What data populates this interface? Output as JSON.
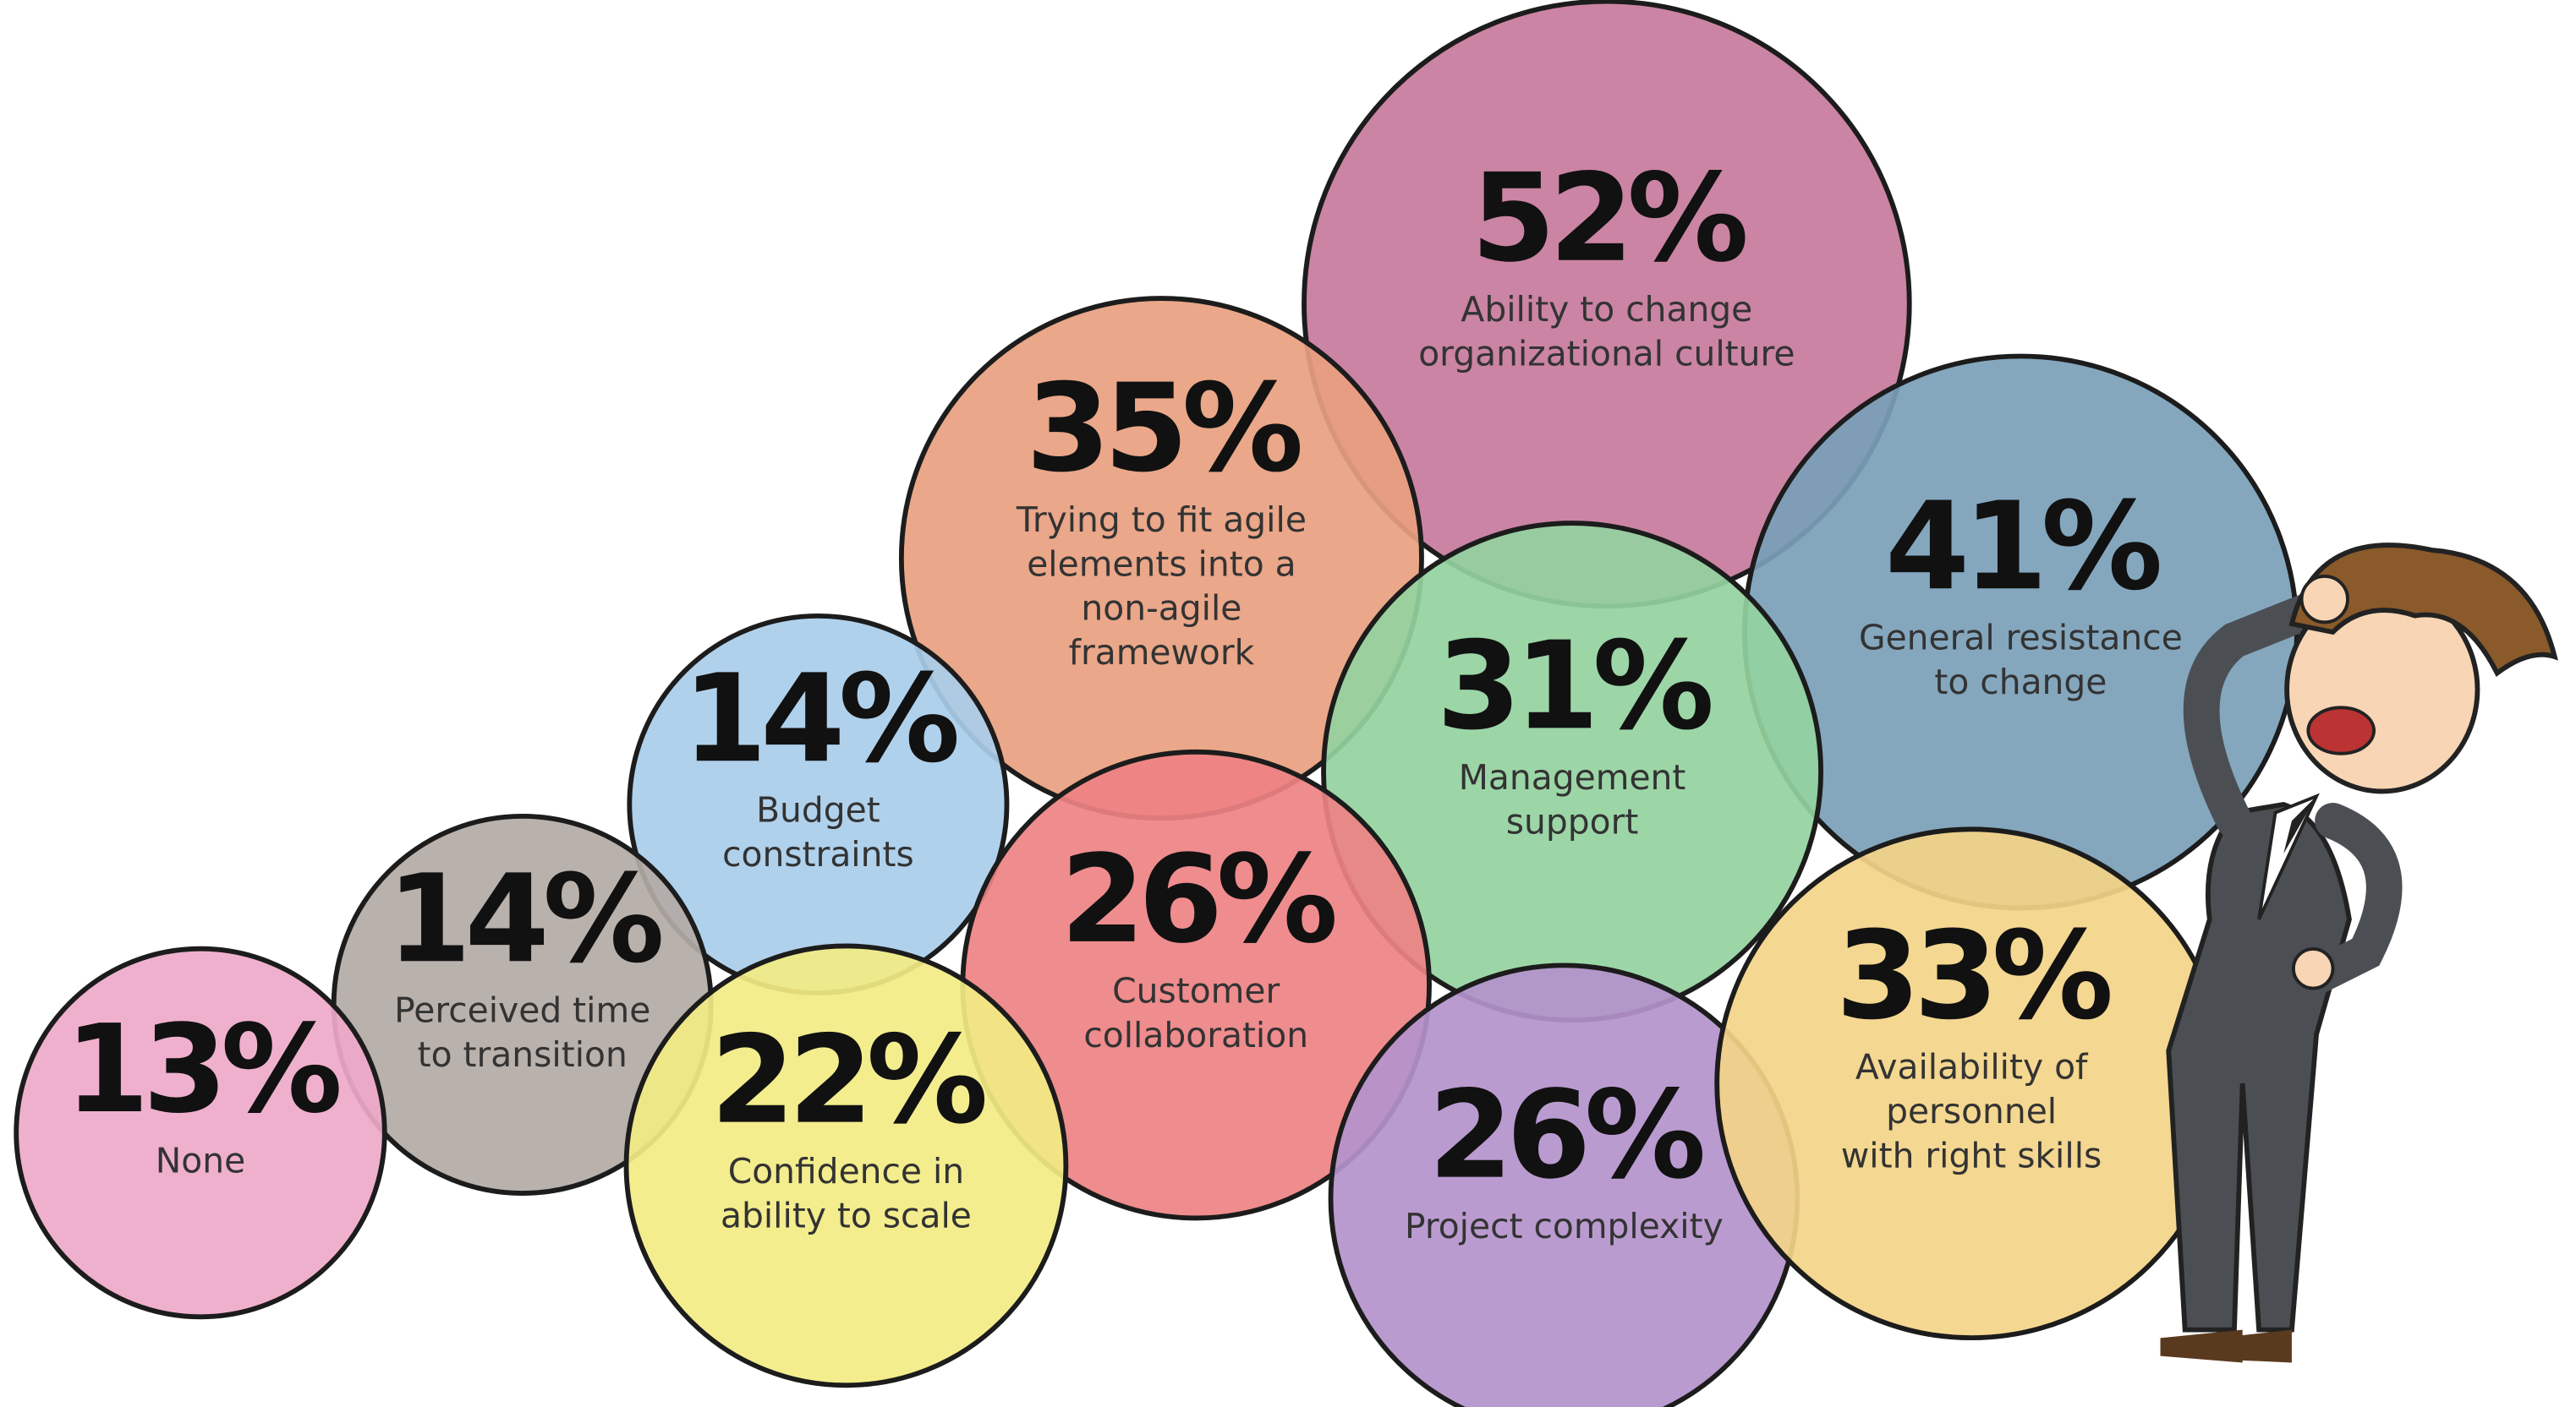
{
  "chart_data": {
    "type": "bubble",
    "categories": [
      "Ability to change\norganizational culture",
      "Trying to fit agile\nelements into a\nnon-agile\nframework",
      "General resistance\nto change",
      "Budget\nconstraints",
      "Management\nsupport",
      "Perceived time\nto transition",
      "Customer\ncollaboration",
      "None",
      "Confidence in\nability to scale",
      "Project complexity",
      "Availability of\npersonnel\nwith right skills"
    ],
    "values": [
      52,
      35,
      41,
      14,
      31,
      14,
      26,
      13,
      22,
      26,
      33
    ],
    "value_labels": [
      "52%",
      "35%",
      "41%",
      "14%",
      "31%",
      "14%",
      "26%",
      "13%",
      "22%",
      "26%",
      "33%"
    ],
    "colors": [
      "#c77a9b",
      "#e8a07f",
      "#7a9fb8",
      "#a9cdea",
      "#94d39f",
      "#b3aaa5",
      "#ee8283",
      "#eea9c9",
      "#f2ec84",
      "#b493cc",
      "#f3d487"
    ]
  }
}
